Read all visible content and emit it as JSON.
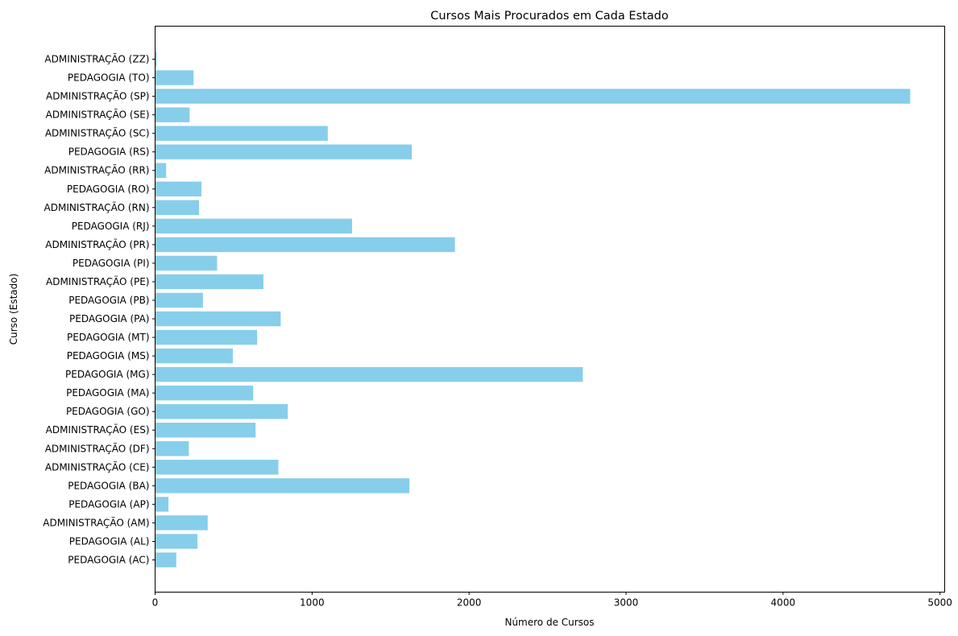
{
  "chart_data": {
    "type": "bar",
    "orientation": "horizontal",
    "title": "Cursos Mais Procurados em Cada Estado",
    "xlabel": "Número de Cursos",
    "ylabel": "Curso (Estado)",
    "xlim": [
      0,
      5030
    ],
    "x_ticks": [
      "0",
      "1000",
      "2000",
      "3000",
      "4000",
      "5000"
    ],
    "bar_color": "#87CEEB",
    "grid": false,
    "categories": [
      "PEDAGOGIA (AC)",
      "PEDAGOGIA (AL)",
      "ADMINISTRAÇÃO (AM)",
      "PEDAGOGIA (AP)",
      "PEDAGOGIA (BA)",
      "ADMINISTRAÇÃO (CE)",
      "ADMINISTRAÇÃO (DF)",
      "ADMINISTRAÇÃO (ES)",
      "PEDAGOGIA (GO)",
      "PEDAGOGIA (MA)",
      "PEDAGOGIA (MG)",
      "PEDAGOGIA (MS)",
      "PEDAGOGIA (MT)",
      "PEDAGOGIA (PA)",
      "PEDAGOGIA (PB)",
      "ADMINISTRAÇÃO (PE)",
      "PEDAGOGIA (PI)",
      "ADMINISTRAÇÃO (PR)",
      "PEDAGOGIA (RJ)",
      "ADMINISTRAÇÃO (RN)",
      "PEDAGOGIA (RO)",
      "ADMINISTRAÇÃO (RR)",
      "PEDAGOGIA (RS)",
      "ADMINISTRAÇÃO (SC)",
      "ADMINISTRAÇÃO (SE)",
      "ADMINISTRAÇÃO (SP)",
      "PEDAGOGIA (TO)",
      "ADMINISTRAÇÃO (ZZ)"
    ],
    "values": [
      135,
      270,
      335,
      85,
      1620,
      785,
      215,
      640,
      845,
      625,
      2725,
      495,
      650,
      800,
      305,
      690,
      395,
      1910,
      1255,
      280,
      295,
      70,
      1635,
      1100,
      220,
      4810,
      245,
      10
    ]
  }
}
